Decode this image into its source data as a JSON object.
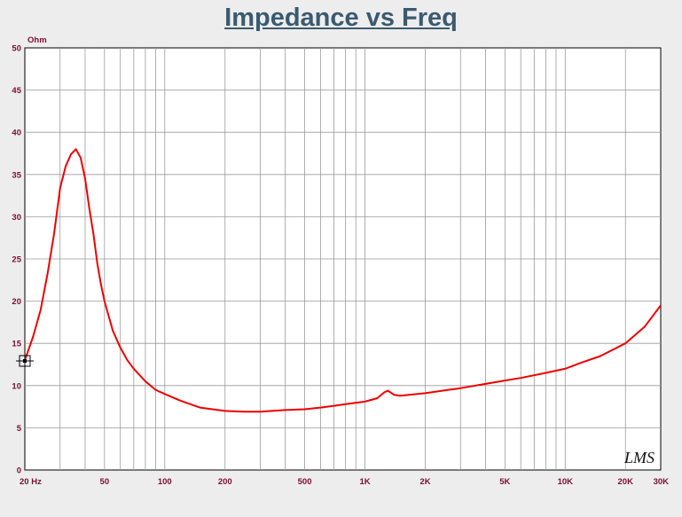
{
  "chart_data": {
    "type": "line",
    "title": "Impedance vs Freq",
    "ylabel": "Ohm",
    "xlabel": "",
    "x_scale": "log",
    "xlim": [
      20,
      30000
    ],
    "ylim": [
      0,
      50
    ],
    "grid": true,
    "x_tick_labels": [
      {
        "value": 20,
        "label": "20  Hz"
      },
      {
        "value": 50,
        "label": "50"
      },
      {
        "value": 100,
        "label": "100"
      },
      {
        "value": 200,
        "label": "200"
      },
      {
        "value": 500,
        "label": "500"
      },
      {
        "value": 1000,
        "label": "1K"
      },
      {
        "value": 2000,
        "label": "2K"
      },
      {
        "value": 5000,
        "label": "5K"
      },
      {
        "value": 10000,
        "label": "10K"
      },
      {
        "value": 20000,
        "label": "20K"
      },
      {
        "value": 30000,
        "label": "30K"
      }
    ],
    "y_ticks": [
      0,
      5,
      10,
      15,
      20,
      25,
      30,
      35,
      40,
      45,
      50
    ],
    "series": [
      {
        "color": "#ee0000",
        "x": [
          20,
          22,
          24,
          26,
          28,
          30,
          32,
          34,
          36,
          38,
          40,
          42,
          44,
          46,
          48,
          50,
          55,
          60,
          65,
          70,
          80,
          90,
          100,
          120,
          150,
          200,
          250,
          300,
          400,
          500,
          600,
          700,
          800,
          1000,
          1150,
          1250,
          1300,
          1400,
          1500,
          2000,
          3000,
          4000,
          5000,
          6000,
          8000,
          10000,
          12000,
          15000,
          20000,
          25000,
          30000
        ],
        "y": [
          13.0,
          15.8,
          19.0,
          23.3,
          28.0,
          33.4,
          36.0,
          37.4,
          38.0,
          37.0,
          34.5,
          31.0,
          28.0,
          24.5,
          22.0,
          20.0,
          16.5,
          14.5,
          13.0,
          12.0,
          10.5,
          9.5,
          9.0,
          8.2,
          7.4,
          7.0,
          6.9,
          6.9,
          7.1,
          7.2,
          7.4,
          7.6,
          7.8,
          8.1,
          8.5,
          9.2,
          9.4,
          8.9,
          8.8,
          9.1,
          9.7,
          10.2,
          10.6,
          10.9,
          11.5,
          12.0,
          12.7,
          13.5,
          15.0,
          17.0,
          19.5
        ]
      }
    ]
  },
  "logo_text": "LMS",
  "cursor_icon": "crosshair-cursor-icon"
}
